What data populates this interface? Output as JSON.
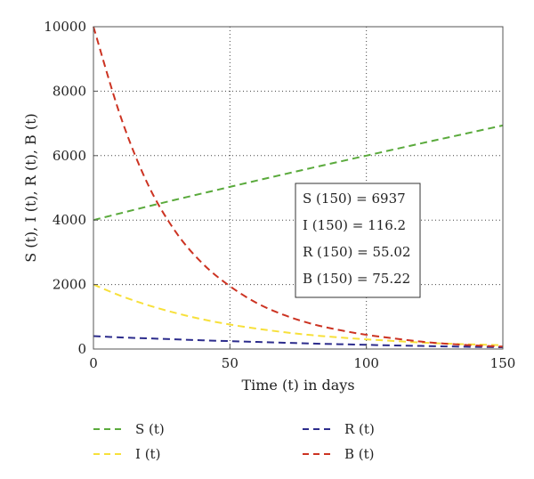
{
  "chart_data": {
    "type": "line",
    "title": "",
    "xlabel": "Time (t) in days",
    "ylabel": "S (t), I (t), R (t), B (t)",
    "xlim": [
      0,
      150
    ],
    "ylim": [
      0,
      10000
    ],
    "x_ticks": [
      "0",
      "50",
      "100",
      "150"
    ],
    "y_ticks": [
      "0",
      "2000",
      "4000",
      "6000",
      "8000",
      "10000"
    ],
    "grid": true,
    "grid_style": "dotted",
    "legend_position": "below",
    "x": [
      0,
      10,
      20,
      30,
      40,
      50,
      60,
      70,
      80,
      90,
      100,
      110,
      120,
      130,
      140,
      150
    ],
    "series": [
      {
        "name": "S (t)",
        "color": "#5aaa3c",
        "values": [
          4000,
          4215,
          4425,
          4630,
          4830,
          5030,
          5230,
          5425,
          5620,
          5810,
          6000,
          6190,
          6380,
          6565,
          6750,
          6937
        ]
      },
      {
        "name": "I (t)",
        "color": "#f7e03a",
        "values": [
          2000,
          1650,
          1360,
          1120,
          920,
          760,
          630,
          520,
          430,
          360,
          300,
          250,
          200,
          165,
          140,
          116.2
        ]
      },
      {
        "name": "R (t)",
        "color": "#2c2c8c",
        "values": [
          400,
          360,
          330,
          300,
          270,
          245,
          220,
          195,
          170,
          150,
          130,
          110,
          95,
          80,
          65,
          55.02
        ]
      },
      {
        "name": "B (t)",
        "color": "#cc3322",
        "values": [
          10000,
          7200,
          5100,
          3650,
          2650,
          1950,
          1420,
          1050,
          780,
          590,
          440,
          330,
          230,
          160,
          110,
          75.22
        ]
      }
    ],
    "annotations": [
      "S (150) = 6937",
      "I (150) = 116.2",
      "R (150) = 55.02",
      "B (150) = 75.22"
    ]
  }
}
